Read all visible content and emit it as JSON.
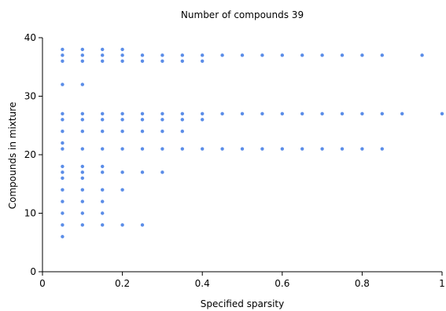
{
  "chart_data": {
    "type": "scatter",
    "title": "Number of compounds 39",
    "xlabel": "Specified sparsity",
    "ylabel": "Compounds in mixture",
    "xlim": [
      0,
      1
    ],
    "ylim": [
      0,
      40
    ],
    "xticks": [
      0,
      0.2,
      0.4,
      0.6,
      0.8,
      1
    ],
    "xtick_labels": [
      "0",
      "0.2",
      "0.4",
      "0.6",
      "0.8",
      "1"
    ],
    "yticks": [
      0,
      10,
      20,
      30,
      40
    ],
    "ytick_labels": [
      "0",
      "10",
      "20",
      "30",
      "40"
    ],
    "grid": false,
    "legend": "none",
    "marker_color": "#5b8de8",
    "series": [
      {
        "points": [
          [
            0.05,
            38
          ],
          [
            0.05,
            37
          ],
          [
            0.05,
            36
          ],
          [
            0.05,
            32
          ],
          [
            0.05,
            27
          ],
          [
            0.05,
            26
          ],
          [
            0.05,
            24
          ],
          [
            0.05,
            22
          ],
          [
            0.05,
            21
          ],
          [
            0.05,
            18
          ],
          [
            0.05,
            17
          ],
          [
            0.05,
            16
          ],
          [
            0.05,
            14
          ],
          [
            0.05,
            12
          ],
          [
            0.05,
            10
          ],
          [
            0.05,
            8
          ],
          [
            0.05,
            6
          ],
          [
            0.1,
            38
          ],
          [
            0.1,
            37
          ],
          [
            0.1,
            36
          ],
          [
            0.1,
            32
          ],
          [
            0.1,
            27
          ],
          [
            0.1,
            26
          ],
          [
            0.1,
            24
          ],
          [
            0.1,
            21
          ],
          [
            0.1,
            18
          ],
          [
            0.1,
            17
          ],
          [
            0.1,
            16
          ],
          [
            0.1,
            14
          ],
          [
            0.1,
            12
          ],
          [
            0.1,
            10
          ],
          [
            0.1,
            8
          ],
          [
            0.15,
            38
          ],
          [
            0.15,
            37
          ],
          [
            0.15,
            36
          ],
          [
            0.15,
            27
          ],
          [
            0.15,
            26
          ],
          [
            0.15,
            24
          ],
          [
            0.15,
            21
          ],
          [
            0.15,
            18
          ],
          [
            0.15,
            17
          ],
          [
            0.15,
            14
          ],
          [
            0.15,
            12
          ],
          [
            0.15,
            10
          ],
          [
            0.15,
            8
          ],
          [
            0.2,
            38
          ],
          [
            0.2,
            37
          ],
          [
            0.2,
            36
          ],
          [
            0.2,
            27
          ],
          [
            0.2,
            26
          ],
          [
            0.2,
            24
          ],
          [
            0.2,
            21
          ],
          [
            0.2,
            17
          ],
          [
            0.2,
            14
          ],
          [
            0.2,
            8
          ],
          [
            0.25,
            37
          ],
          [
            0.25,
            36
          ],
          [
            0.25,
            27
          ],
          [
            0.25,
            26
          ],
          [
            0.25,
            24
          ],
          [
            0.25,
            21
          ],
          [
            0.25,
            17
          ],
          [
            0.25,
            8
          ],
          [
            0.3,
            37
          ],
          [
            0.3,
            36
          ],
          [
            0.3,
            27
          ],
          [
            0.3,
            26
          ],
          [
            0.3,
            24
          ],
          [
            0.3,
            21
          ],
          [
            0.3,
            17
          ],
          [
            0.35,
            37
          ],
          [
            0.35,
            36
          ],
          [
            0.35,
            27
          ],
          [
            0.35,
            26
          ],
          [
            0.35,
            24
          ],
          [
            0.35,
            21
          ],
          [
            0.4,
            37
          ],
          [
            0.4,
            36
          ],
          [
            0.4,
            27
          ],
          [
            0.4,
            26
          ],
          [
            0.4,
            21
          ],
          [
            0.45,
            37
          ],
          [
            0.45,
            27
          ],
          [
            0.45,
            21
          ],
          [
            0.5,
            37
          ],
          [
            0.5,
            27
          ],
          [
            0.5,
            21
          ],
          [
            0.55,
            37
          ],
          [
            0.55,
            27
          ],
          [
            0.55,
            21
          ],
          [
            0.6,
            37
          ],
          [
            0.6,
            27
          ],
          [
            0.6,
            21
          ],
          [
            0.65,
            37
          ],
          [
            0.65,
            27
          ],
          [
            0.65,
            21
          ],
          [
            0.7,
            37
          ],
          [
            0.7,
            27
          ],
          [
            0.7,
            21
          ],
          [
            0.75,
            37
          ],
          [
            0.75,
            27
          ],
          [
            0.75,
            21
          ],
          [
            0.8,
            37
          ],
          [
            0.8,
            27
          ],
          [
            0.8,
            21
          ],
          [
            0.85,
            37
          ],
          [
            0.85,
            27
          ],
          [
            0.85,
            21
          ],
          [
            0.9,
            27
          ],
          [
            0.95,
            37
          ],
          [
            1.0,
            27
          ]
        ]
      }
    ]
  }
}
